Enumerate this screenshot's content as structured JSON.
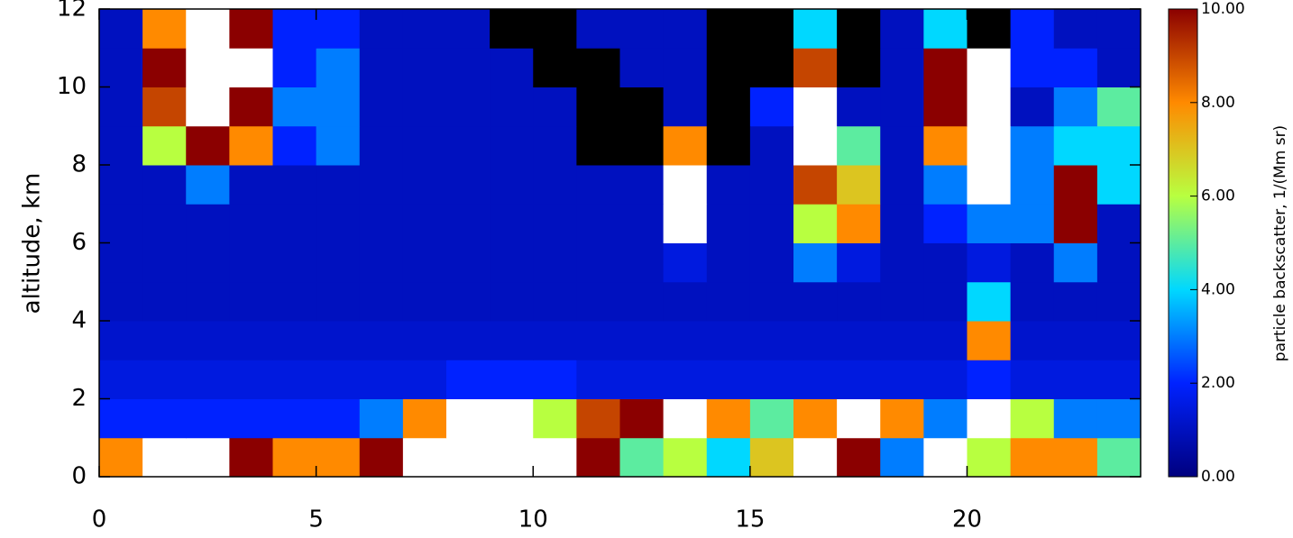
{
  "chart_data": {
    "type": "heatmap",
    "y_label": "altitude, km",
    "colorbar_label": "particle backscatter, 1/(Mm sr)",
    "xlim": [
      0,
      24
    ],
    "xticks": [
      0,
      5,
      10,
      15,
      20
    ],
    "ylim": [
      0,
      12
    ],
    "yticks": [
      0,
      2,
      4,
      6,
      8,
      10,
      12
    ],
    "clim": [
      0,
      10
    ],
    "cticks": [
      {
        "value": 0,
        "label": "0.00"
      },
      {
        "value": 2,
        "label": "2.00"
      },
      {
        "value": 4,
        "label": "4.00"
      },
      {
        "value": 6,
        "label": "6.00"
      },
      {
        "value": 8,
        "label": "8.00"
      },
      {
        "value": 10,
        "label": "10.00"
      }
    ],
    "colorscale": [
      "#00007f",
      "#0022ff",
      "#00d8ff",
      "#b8ff40",
      "#ff8a00",
      "#8b0000"
    ],
    "over_color": "#ffffff",
    "null_color": "#000000",
    "x_edges": [
      0,
      1,
      2,
      3,
      4,
      5,
      6,
      7,
      8,
      9,
      10,
      11,
      12,
      13,
      14,
      15,
      16,
      17,
      18,
      19,
      20,
      21,
      22,
      23,
      24
    ],
    "y_edges": [
      0,
      1,
      2,
      3,
      4,
      5,
      6,
      7,
      8,
      9,
      10,
      11,
      12
    ],
    "z": [
      [
        8,
        12,
        12,
        10,
        8,
        8,
        10,
        12,
        12,
        12,
        12,
        10,
        5,
        6,
        4,
        7,
        12,
        10,
        3,
        12,
        6,
        8,
        8,
        5
      ],
      [
        2,
        2,
        2,
        2,
        2,
        2,
        3,
        8,
        12,
        12,
        6,
        9,
        10,
        12,
        8,
        5,
        8,
        12,
        8,
        3,
        12,
        6,
        3,
        3
      ],
      [
        1.5,
        1.5,
        1.5,
        1.5,
        1.5,
        1.5,
        1.5,
        1.5,
        2,
        2,
        2,
        1.5,
        1.5,
        1.5,
        1.5,
        1.5,
        1.5,
        1.5,
        1.5,
        1.5,
        2,
        1.5,
        1.5,
        1.5
      ],
      [
        1.2,
        1.2,
        1.2,
        1.2,
        1.2,
        1.2,
        1.2,
        1.2,
        1.2,
        1.2,
        1.2,
        1.2,
        1.2,
        1.2,
        1.2,
        1.2,
        1.2,
        1.2,
        1.2,
        1.2,
        8,
        1.2,
        1.2,
        1.2
      ],
      [
        1,
        1,
        1,
        1,
        1,
        1,
        1,
        1,
        1,
        1,
        1,
        1,
        1,
        1,
        1,
        1,
        1,
        1,
        1,
        1,
        4,
        1,
        1,
        1
      ],
      [
        1,
        1,
        1,
        1,
        1,
        1,
        1,
        1,
        1,
        1,
        1,
        1,
        1,
        1.5,
        1,
        1,
        3,
        1.5,
        1,
        1,
        1.5,
        1,
        3,
        1
      ],
      [
        1,
        1,
        1,
        1,
        1,
        1,
        1,
        1,
        1,
        1,
        1,
        1,
        1,
        12,
        1,
        1,
        6,
        8,
        1,
        2,
        3,
        3,
        10,
        1
      ],
      [
        1,
        1,
        3,
        1,
        1,
        1,
        1,
        1,
        1,
        1,
        1,
        1,
        1,
        12,
        1,
        1,
        9,
        7,
        1,
        3,
        12,
        3,
        10,
        4
      ],
      [
        1,
        6,
        10,
        8,
        2,
        3,
        1,
        1,
        1,
        1,
        1,
        null,
        null,
        8,
        null,
        1,
        12,
        5,
        1,
        8,
        12,
        3,
        4,
        4
      ],
      [
        1,
        9,
        12,
        10,
        3,
        3,
        1,
        1,
        1,
        1,
        1,
        null,
        null,
        1,
        null,
        2,
        12,
        1,
        1,
        10,
        12,
        1,
        3,
        5
      ],
      [
        1,
        10,
        12,
        12,
        2,
        3,
        1,
        1,
        1,
        1,
        null,
        null,
        1,
        1,
        null,
        null,
        9,
        null,
        1,
        10,
        12,
        2,
        2,
        1
      ],
      [
        1,
        8,
        12,
        10,
        2,
        2,
        1,
        1,
        1,
        null,
        null,
        1,
        1,
        1,
        null,
        null,
        4,
        null,
        1,
        4,
        null,
        2,
        1,
        1
      ]
    ]
  }
}
